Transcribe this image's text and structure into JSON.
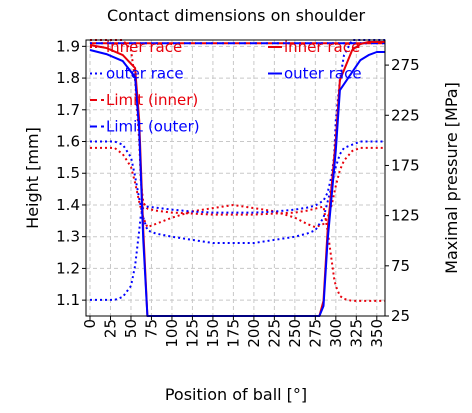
{
  "chart_data": {
    "type": "line",
    "title": "Contact dimensions on shoulder",
    "xlabel": "Position of ball [°]",
    "ylabel_left": "Height [mm]",
    "ylabel_right": "Maximal pressure [MPa]",
    "xlim": [
      0,
      360
    ],
    "ylim_left": [
      1.05,
      1.92
    ],
    "ylim_right": [
      25,
      300
    ],
    "x_ticks": [
      0,
      25,
      50,
      75,
      100,
      125,
      150,
      175,
      200,
      225,
      250,
      275,
      300,
      325,
      350
    ],
    "y_left_ticks": [
      1.1,
      1.2,
      1.3,
      1.4,
      1.5,
      1.6,
      1.7,
      1.8,
      1.9
    ],
    "y_right_ticks": [
      25,
      75,
      125,
      175,
      225,
      275
    ],
    "grid": true,
    "colors": {
      "inner": "#e8000b",
      "outer": "#0000ff"
    },
    "legend_left": [
      {
        "label": "inner race",
        "style": "dotted",
        "color": "#e8000b"
      },
      {
        "label": "outer race",
        "style": "dotted",
        "color": "#0000ff"
      },
      {
        "label": "Limit (inner)",
        "style": "dashed",
        "color": "#e8000b"
      },
      {
        "label": "Limit (outer)",
        "style": "dashed",
        "color": "#0000ff"
      }
    ],
    "legend_right": [
      {
        "label": "inner race",
        "style": "solid",
        "color": "#e8000b"
      },
      {
        "label": "outer race",
        "style": "solid",
        "color": "#0000ff"
      }
    ],
    "series": [
      {
        "name": "inner race",
        "axis": "left",
        "style": "dotted",
        "color": "#e8000b",
        "x": [
          0,
          10,
          20,
          30,
          40,
          50,
          55,
          60,
          65,
          70,
          80,
          100,
          125,
          150,
          175,
          200,
          225,
          250,
          265,
          275,
          285,
          290,
          295,
          300,
          305,
          310,
          320,
          330,
          340,
          350,
          360
        ],
        "y": [
          1.58,
          1.58,
          1.58,
          1.58,
          1.56,
          1.52,
          1.47,
          1.41,
          1.36,
          1.33,
          1.34,
          1.36,
          1.38,
          1.39,
          1.4,
          1.39,
          1.38,
          1.36,
          1.34,
          1.33,
          1.34,
          1.36,
          1.4,
          1.46,
          1.51,
          1.54,
          1.57,
          1.58,
          1.58,
          1.58,
          1.58
        ]
      },
      {
        "name": "outer race",
        "axis": "left",
        "style": "dotted",
        "color": "#0000ff",
        "x": [
          0,
          10,
          20,
          30,
          40,
          50,
          55,
          60,
          65,
          70,
          80,
          100,
          125,
          150,
          175,
          200,
          225,
          250,
          265,
          275,
          285,
          290,
          295,
          300,
          305,
          310,
          320,
          330,
          340,
          350,
          360
        ],
        "y": [
          1.6,
          1.6,
          1.6,
          1.6,
          1.59,
          1.55,
          1.49,
          1.42,
          1.36,
          1.32,
          1.31,
          1.3,
          1.29,
          1.28,
          1.28,
          1.28,
          1.29,
          1.3,
          1.31,
          1.32,
          1.36,
          1.41,
          1.46,
          1.52,
          1.56,
          1.58,
          1.59,
          1.6,
          1.6,
          1.6,
          1.6
        ]
      },
      {
        "name": "Limit (inner)",
        "axis": "left",
        "style": "dashed",
        "color": "#e8000b",
        "x": [
          0,
          360
        ],
        "y": [
          1.91,
          1.91
        ]
      },
      {
        "name": "Limit (outer)",
        "axis": "left",
        "style": "dashed",
        "color": "#0000ff",
        "x": [
          0,
          360
        ],
        "y": [
          1.91,
          1.91
        ]
      },
      {
        "name": "inner race",
        "axis": "right",
        "style": "dotted",
        "color": "#e8000b",
        "x": [
          0,
          10,
          20,
          30,
          40,
          50,
          55,
          60,
          62,
          65,
          70,
          80,
          100,
          125,
          150,
          175,
          200,
          225,
          250,
          265,
          275,
          285,
          290,
          295,
          298,
          300,
          305,
          310,
          320,
          330,
          340,
          350,
          360
        ],
        "y": [
          300,
          300,
          300,
          300,
          300,
          290,
          260,
          200,
          160,
          138,
          132,
          130,
          128,
          127,
          126,
          126,
          126,
          127,
          128,
          130,
          132,
          134,
          110,
          80,
          62,
          55,
          45,
          42,
          40,
          40,
          40,
          40,
          40
        ]
      },
      {
        "name": "outer race",
        "axis": "right",
        "style": "dotted",
        "color": "#0000ff",
        "x": [
          0,
          10,
          20,
          30,
          40,
          50,
          55,
          60,
          62,
          65,
          70,
          80,
          100,
          125,
          150,
          175,
          200,
          225,
          250,
          265,
          275,
          285,
          290,
          295,
          298,
          300,
          305,
          310,
          320,
          330,
          340,
          350,
          360
        ],
        "y": [
          41,
          41,
          41,
          41,
          44,
          55,
          75,
          110,
          125,
          133,
          134,
          133,
          131,
          129,
          128,
          128,
          128,
          129,
          131,
          133,
          135,
          140,
          148,
          165,
          185,
          220,
          260,
          285,
          300,
          300,
          300,
          300,
          300
        ]
      },
      {
        "name": "inner race",
        "axis": "right",
        "style": "solid",
        "color": "#e8000b",
        "x": [
          0,
          20,
          40,
          55,
          60,
          65,
          70,
          75,
          100,
          150,
          200,
          250,
          275,
          280,
          285,
          290,
          300,
          305,
          320,
          330,
          340,
          350,
          360
        ],
        "y": [
          295,
          292,
          285,
          272,
          220,
          110,
          25,
          25,
          25,
          25,
          25,
          25,
          25,
          25,
          40,
          110,
          200,
          260,
          290,
          296,
          298,
          298,
          298
        ]
      },
      {
        "name": "outer race",
        "axis": "right",
        "style": "solid",
        "color": "#0000ff",
        "x": [
          0,
          20,
          40,
          55,
          60,
          65,
          70,
          75,
          100,
          150,
          200,
          250,
          275,
          280,
          285,
          290,
          300,
          305,
          320,
          330,
          340,
          350,
          360
        ],
        "y": [
          290,
          286,
          279,
          263,
          210,
          100,
          25,
          25,
          25,
          25,
          25,
          25,
          25,
          25,
          35,
          100,
          190,
          250,
          268,
          280,
          285,
          288,
          288
        ]
      }
    ]
  }
}
